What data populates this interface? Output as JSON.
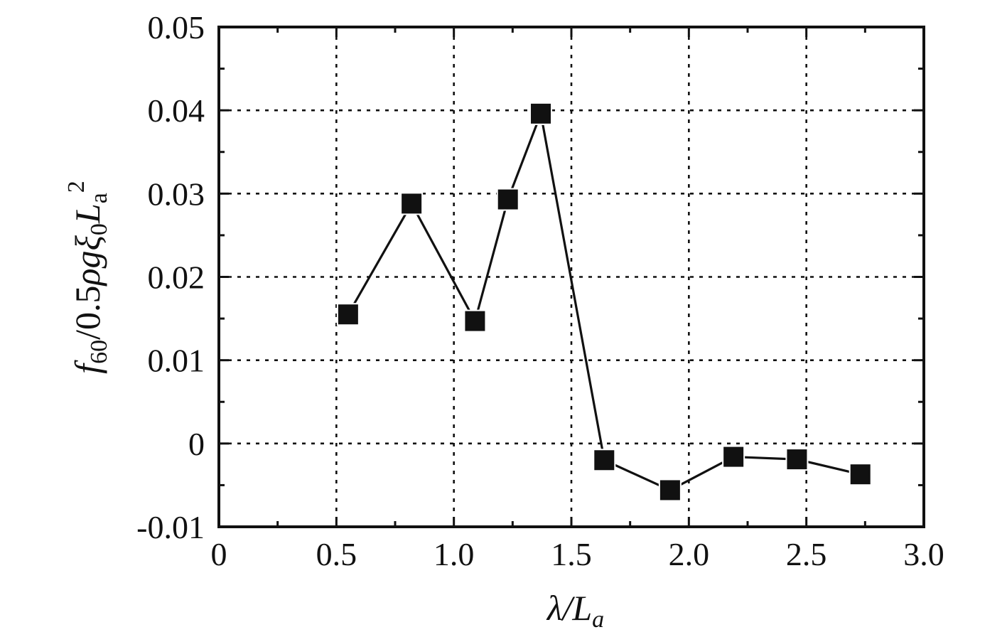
{
  "chart_data": {
    "type": "line",
    "x_tick_labels": [
      "0",
      "0.5",
      "1.0",
      "1.5",
      "2.0",
      "2.5",
      "3.0"
    ],
    "x_ticks": [
      0,
      0.5,
      1.0,
      1.5,
      2.0,
      2.5,
      3.0
    ],
    "y_tick_labels": [
      "-0.01",
      "0",
      "0.01",
      "0.02",
      "0.03",
      "0.04",
      "0.05"
    ],
    "y_ticks": [
      -0.01,
      0,
      0.01,
      0.02,
      0.03,
      0.04,
      0.05
    ],
    "xlim": [
      0,
      3.0
    ],
    "ylim": [
      -0.01,
      0.05
    ],
    "grid": true,
    "series": [
      {
        "marker": "filled-square",
        "color": "#111111",
        "x": [
          0.55,
          0.82,
          1.09,
          1.23,
          1.37,
          1.64,
          1.92,
          2.19,
          2.46,
          2.73
        ],
        "y": [
          0.0155,
          0.0288,
          0.0147,
          0.0293,
          0.0396,
          -0.002,
          -0.0056,
          -0.0016,
          -0.0019,
          -0.0037
        ]
      }
    ]
  }
}
